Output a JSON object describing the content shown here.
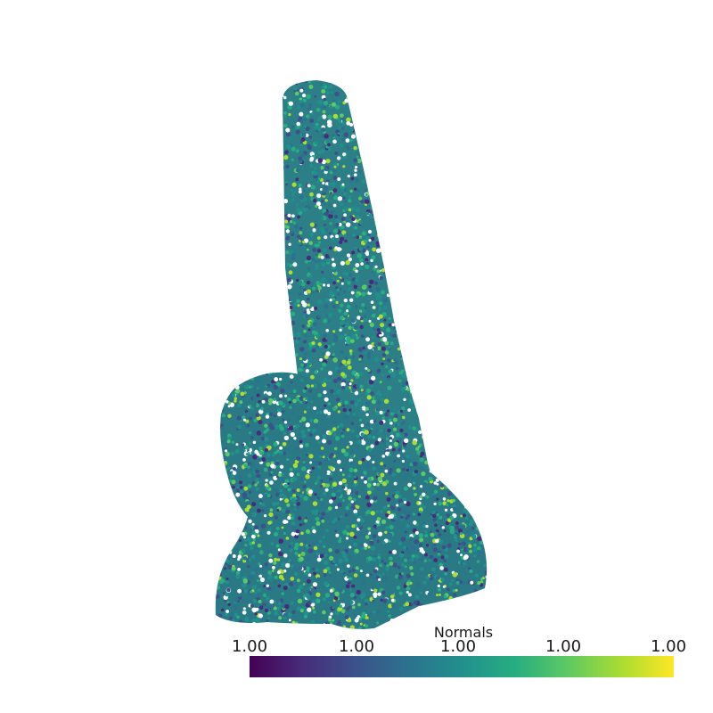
{
  "scalar_bar": {
    "title": "Normals",
    "ticks": [
      "1.00",
      "1.00",
      "1.00",
      "1.00",
      "1.00"
    ],
    "colormap": "viridis",
    "colors": [
      "#440154",
      "#3b528b",
      "#21908d",
      "#5dc963",
      "#fde725"
    ]
  },
  "point_cloud": {
    "shape": "nose-like extruded object",
    "dominant_color": "#21908d",
    "background": "#ffffff"
  }
}
